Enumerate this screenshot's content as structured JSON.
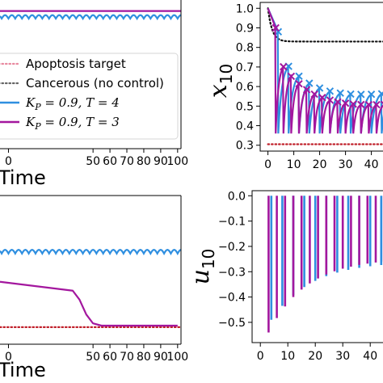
{
  "chart_data": [
    {
      "id": "panel-top-left",
      "type": "line",
      "xlabel": "Time",
      "ylabel": "",
      "xlim": [
        -5,
        102
      ],
      "ylim": [
        0,
        1.08
      ],
      "xticks": [
        "0",
        "50",
        "60",
        "70",
        "80",
        "90",
        "100"
      ],
      "xtick_values": [
        0,
        50,
        60,
        70,
        80,
        90,
        100
      ],
      "series": [
        {
          "name": "K_P = 0.9, T = 3",
          "color": "#a3179e",
          "kind": "flat",
          "level": 1.0
        },
        {
          "name": "K_P = 0.9, T = 4",
          "color": "#2f8fe0",
          "kind": "wave",
          "level": 0.945,
          "amp": 0.025,
          "period": 4
        }
      ],
      "legend": {
        "placement": "lower-left",
        "entries": [
          {
            "label": "Apoptosis target",
            "color": "#e88aa0",
            "style": "dotted"
          },
          {
            "label": "Cancerous (no control)",
            "color": "#666666",
            "style": "dotted"
          },
          {
            "label_prefix": "K",
            "label_sub": "P",
            "label_suffix": " = 0.9, T = 4",
            "color": "#2f8fe0",
            "style": "solid"
          },
          {
            "label_prefix": "K",
            "label_sub": "P",
            "label_suffix": " = 0.9, T = 3",
            "color": "#a3179e",
            "style": "solid"
          }
        ]
      }
    },
    {
      "id": "panel-top-right",
      "type": "line",
      "ylabel_main": "x",
      "ylabel_sub": "10",
      "xlim": [
        -3,
        47
      ],
      "ylim": [
        0.27,
        1.03
      ],
      "xticks": [
        "0",
        "10",
        "20",
        "30",
        "40"
      ],
      "xtick_values": [
        0,
        10,
        20,
        30,
        40
      ],
      "yticks": [
        "0.3",
        "0.4",
        "0.5",
        "0.6",
        "0.7",
        "0.8",
        "0.9",
        "1.0"
      ],
      "ytick_values": [
        0.3,
        0.4,
        0.5,
        0.6,
        0.7,
        0.8,
        0.9,
        1.0
      ],
      "cancerous_level": 0.83,
      "apoptosis_level": 0.305,
      "series": [
        {
          "name": "K_P = 0.9, T = 4",
          "color": "#2f8fe0",
          "period": 4,
          "start": 4,
          "floor": 0.36
        },
        {
          "name": "K_P = 0.9, T = 3",
          "color": "#a3179e",
          "period": 3,
          "start": 3,
          "floor": 0.36
        }
      ]
    },
    {
      "id": "panel-bottom-left",
      "type": "line",
      "xlabel": "Time",
      "xlim": [
        -5,
        102
      ],
      "ylim": [
        0,
        1
      ],
      "xticks": [
        "0",
        "50",
        "60",
        "70",
        "80",
        "90",
        "100"
      ],
      "xtick_values": [
        0,
        50,
        60,
        70,
        80,
        90,
        100
      ],
      "wave_level": 0.61,
      "wave_amp": 0.025,
      "apoptosis_level": 0.115,
      "series": [
        {
          "name": "K_P = 0.9, T = 4",
          "color": "#2f8fe0",
          "period": 4
        },
        {
          "name": "K_P = 0.9, T = 3",
          "color": "#a3179e",
          "decay": [
            [
              -5,
              0.42
            ],
            [
              38,
              0.36
            ],
            [
              42,
              0.3
            ],
            [
              46,
              0.2
            ],
            [
              50,
              0.14
            ],
            [
              55,
              0.125
            ],
            [
              100,
              0.125
            ]
          ]
        }
      ]
    },
    {
      "id": "panel-bottom-right",
      "type": "bar",
      "ylabel_main": "u",
      "ylabel_sub": "10",
      "xlim": [
        -3,
        47
      ],
      "ylim": [
        -0.58,
        0.02
      ],
      "xticks": [
        "0",
        "10",
        "20",
        "30",
        "40"
      ],
      "xtick_values": [
        0,
        10,
        20,
        30,
        40
      ],
      "yticks": [
        "0.0",
        "−0.1",
        "−0.2",
        "−0.3",
        "−0.4",
        "−0.5"
      ],
      "ytick_values": [
        0,
        -0.1,
        -0.2,
        -0.3,
        -0.4,
        -0.5
      ],
      "series": [
        {
          "name": "K_P = 0.9, T = 4",
          "color": "#2f8fe0",
          "period": 4,
          "start": 4,
          "first": -0.49,
          "last": -0.27
        },
        {
          "name": "K_P = 0.9, T = 3",
          "color": "#a3179e",
          "period": 3,
          "start": 3,
          "first": -0.54,
          "last": -0.26
        }
      ]
    }
  ]
}
